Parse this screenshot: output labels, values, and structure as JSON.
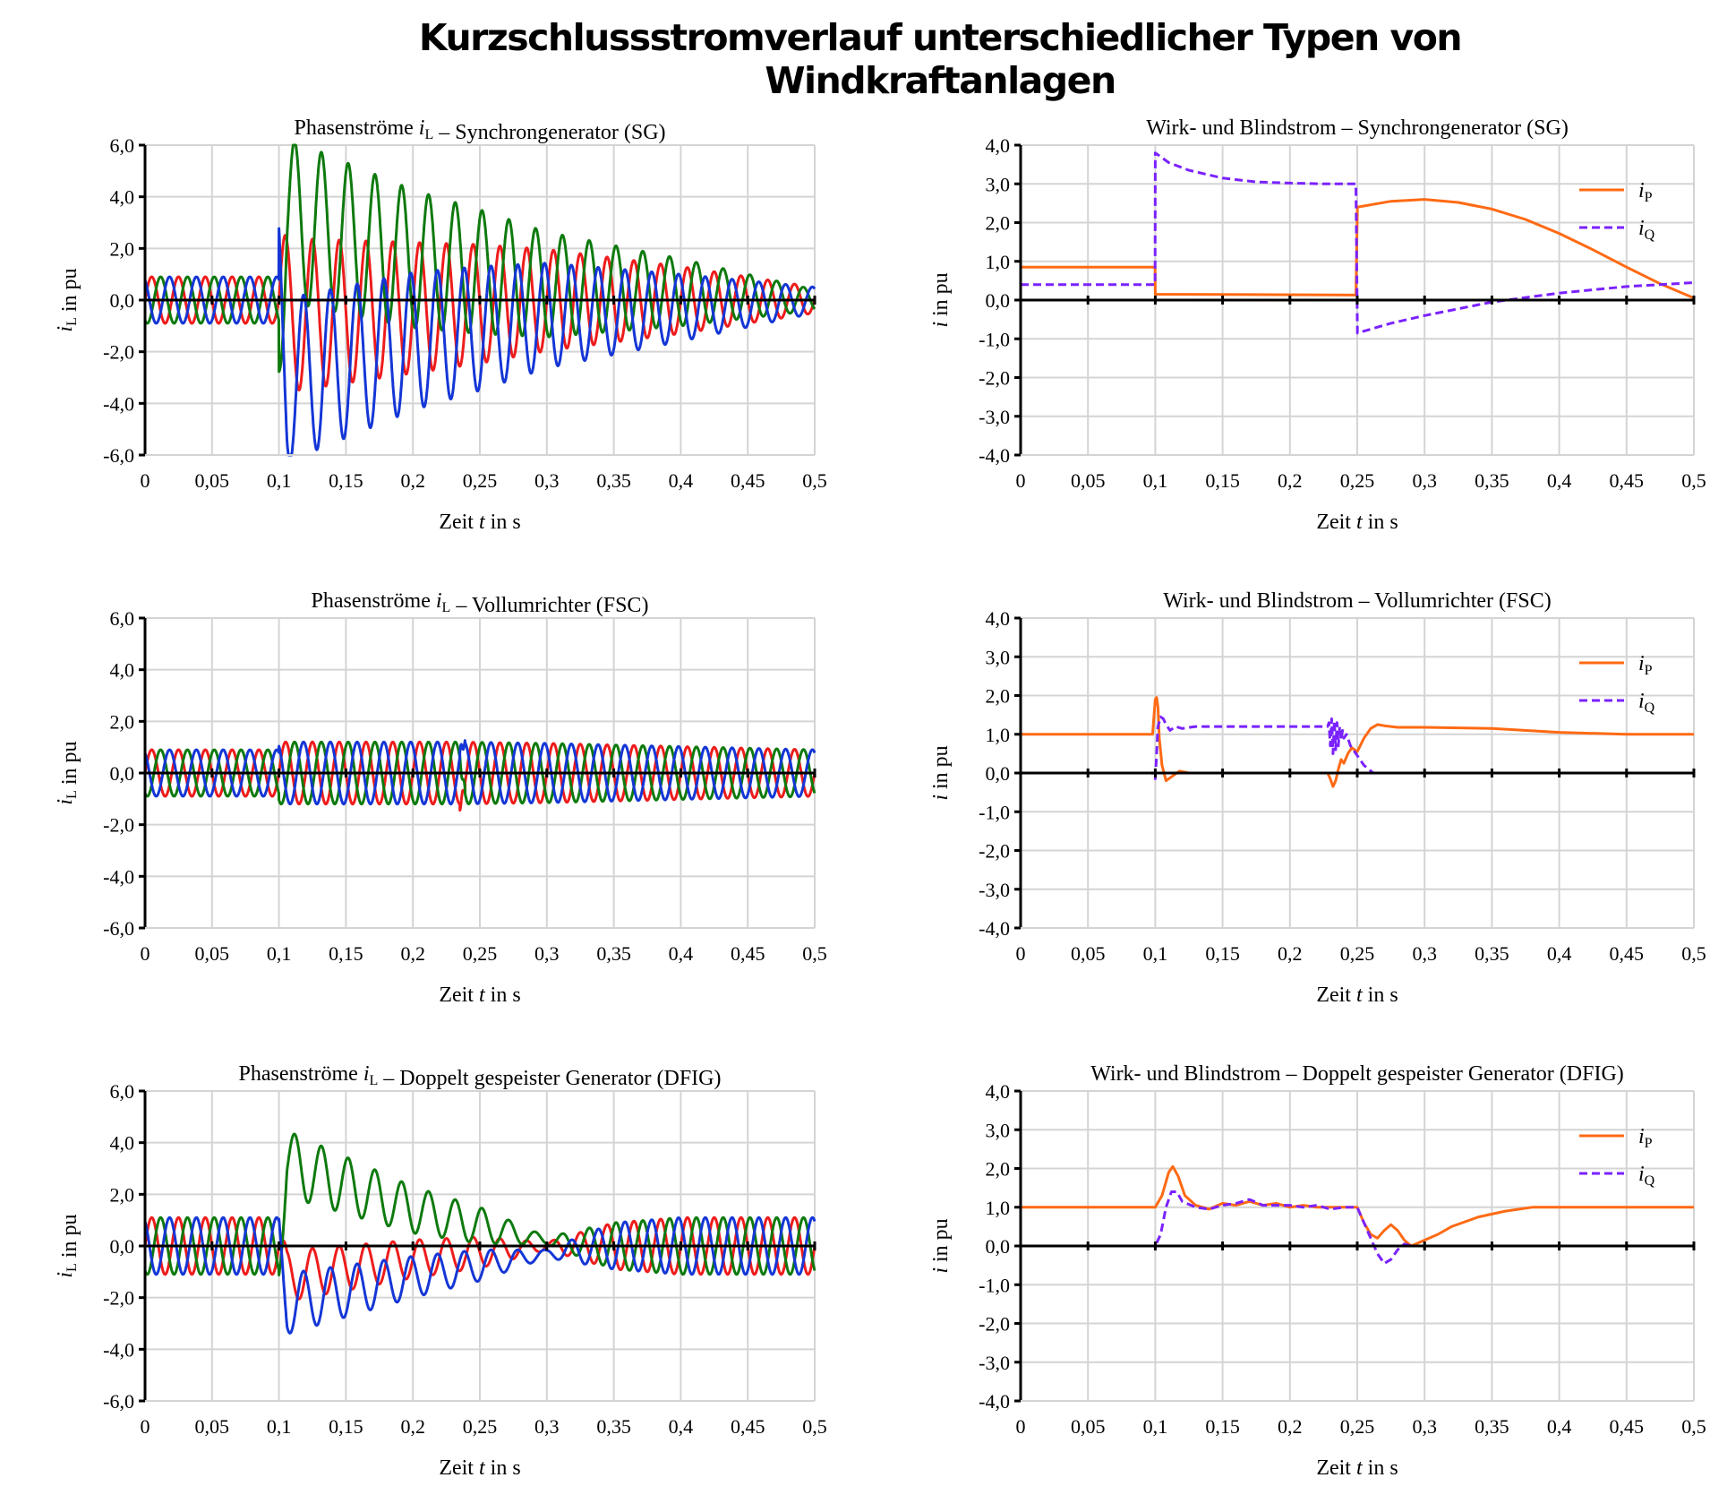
{
  "page_title": "Kurzschlussstromverlauf unterschiedlicher Typen von Windkraftanlagen",
  "colors": {
    "phase_red": "#ee1c1c",
    "phase_green": "#0e7a0e",
    "phase_blue": "#1436d6",
    "iP": "#ff6a14",
    "iQ": "#7a22ff"
  },
  "chart_data": [
    {
      "type": "line",
      "id": "sg_phase",
      "title": "Phasenströme iL – Synchrongenerator (SG)",
      "xlabel": "Zeit t in s",
      "ylabel": "iL in pu",
      "xlim": [
        0,
        0.5
      ],
      "ylim": [
        -6,
        6
      ],
      "xticks": [
        "0",
        "0,05",
        "0,1",
        "0,15",
        "0,2",
        "0,25",
        "0,3",
        "0,35",
        "0,4",
        "0,45",
        "0,5"
      ],
      "yticks": [
        "6,0",
        "4,0",
        "2,0",
        "0,0",
        "-2,0",
        "-4,0",
        "-6,0"
      ],
      "grid": true,
      "legend": "none",
      "series": [
        {
          "color": "#ee1c1c",
          "phase_deg": 0,
          "pre_amplitude": 0.9,
          "fault_start": 0.1,
          "fault_end": 0.5,
          "ac_amplitude": [
            [
              0.1,
              3.0
            ],
            [
              0.25,
              2.3
            ],
            [
              0.4,
              1.3
            ],
            [
              0.5,
              0.5
            ]
          ],
          "dc_offset": [
            [
              0.1,
              -0.6
            ],
            [
              0.2,
              -0.3
            ],
            [
              0.3,
              0
            ],
            [
              0.5,
              0
            ]
          ]
        },
        {
          "color": "#0e7a0e",
          "phase_deg": -120,
          "pre_amplitude": 0.9,
          "fault_start": 0.1,
          "fault_end": 0.5,
          "ac_amplitude": [
            [
              0.1,
              3.2
            ],
            [
              0.25,
              2.4
            ],
            [
              0.4,
              1.3
            ],
            [
              0.5,
              0.4
            ]
          ],
          "dc_offset": [
            [
              0.1,
              3.2
            ],
            [
              0.2,
              1.6
            ],
            [
              0.3,
              0.6
            ],
            [
              0.5,
              0
            ]
          ]
        },
        {
          "color": "#1436d6",
          "phase_deg": 120,
          "pre_amplitude": 0.9,
          "fault_start": 0.1,
          "fault_end": 0.5,
          "ac_amplitude": [
            [
              0.1,
              3.2
            ],
            [
              0.25,
              2.4
            ],
            [
              0.4,
              1.3
            ],
            [
              0.5,
              0.5
            ]
          ],
          "dc_offset": [
            [
              0.1,
              -3.2
            ],
            [
              0.2,
              -1.6
            ],
            [
              0.3,
              -0.6
            ],
            [
              0.5,
              0
            ]
          ]
        }
      ]
    },
    {
      "type": "line",
      "id": "sg_pq",
      "title": "Wirk- und Blindstrom – Synchrongenerator (SG)",
      "xlabel": "Zeit t in s",
      "ylabel": "i in pu",
      "xlim": [
        0,
        0.5
      ],
      "ylim": [
        -4,
        4
      ],
      "xticks": [
        "0",
        "0,05",
        "0,1",
        "0,15",
        "0,2",
        "0,25",
        "0,3",
        "0,35",
        "0,4",
        "0,45",
        "0,5"
      ],
      "yticks": [
        "4,0",
        "3,0",
        "2,0",
        "1,0",
        "0,0",
        "-1,0",
        "-2,0",
        "-3,0",
        "-4,0"
      ],
      "grid": true,
      "legend": "top-right",
      "legend_labels": [
        {
          "base": "i",
          "sub": "P"
        },
        {
          "base": "i",
          "sub": "Q"
        }
      ],
      "series": [
        {
          "name": "iP",
          "color": "#ff6a14",
          "dash": false,
          "x": [
            0,
            0.0999,
            0.1,
            0.249,
            0.2501,
            0.275,
            0.3,
            0.325,
            0.35,
            0.375,
            0.4,
            0.425,
            0.45,
            0.475,
            0.5
          ],
          "y": [
            0.85,
            0.85,
            0.15,
            0.13,
            2.4,
            2.55,
            2.6,
            2.52,
            2.35,
            2.08,
            1.72,
            1.3,
            0.85,
            0.42,
            0.05
          ]
        },
        {
          "name": "iQ",
          "color": "#7a22ff",
          "dash": true,
          "x": [
            0,
            0.0999,
            0.1,
            0.11,
            0.125,
            0.15,
            0.175,
            0.2,
            0.225,
            0.249,
            0.2501,
            0.275,
            0.3,
            0.35,
            0.4,
            0.45,
            0.5
          ],
          "y": [
            0.4,
            0.4,
            3.8,
            3.55,
            3.35,
            3.15,
            3.05,
            3.02,
            3.0,
            3.0,
            -0.85,
            -0.6,
            -0.4,
            -0.05,
            0.18,
            0.35,
            0.45
          ]
        }
      ]
    },
    {
      "type": "line",
      "id": "fsc_phase",
      "title": "Phasenströme iL – Vollumrichter (FSC)",
      "xlabel": "Zeit t in s",
      "ylabel": "iL in pu",
      "xlim": [
        0,
        0.5
      ],
      "ylim": [
        -6,
        6
      ],
      "xticks": [
        "0",
        "0,05",
        "0,1",
        "0,15",
        "0,2",
        "0,25",
        "0,3",
        "0,35",
        "0,4",
        "0,45",
        "0,5"
      ],
      "yticks": [
        "6,0",
        "4,0",
        "2,0",
        "0,0",
        "-2,0",
        "-4,0",
        "-6,0"
      ],
      "grid": true,
      "legend": "none",
      "series": [
        {
          "color": "#ee1c1c",
          "phase_deg": 0,
          "pre_amplitude": 0.9,
          "fault_start": 0.1,
          "fault_end": 0.235,
          "ac_amplitude": [
            [
              0.1,
              1.2
            ],
            [
              0.235,
              1.2
            ],
            [
              0.3,
              1.15
            ],
            [
              0.5,
              0.9
            ]
          ],
          "dc_offset": [
            [
              0,
              0
            ]
          ]
        },
        {
          "color": "#0e7a0e",
          "phase_deg": -120,
          "pre_amplitude": 0.9,
          "fault_start": 0.1,
          "fault_end": 0.235,
          "ac_amplitude": [
            [
              0.1,
              1.2
            ],
            [
              0.235,
              1.2
            ],
            [
              0.3,
              1.15
            ],
            [
              0.5,
              0.9
            ]
          ],
          "dc_offset": [
            [
              0,
              0
            ]
          ]
        },
        {
          "color": "#1436d6",
          "phase_deg": 120,
          "pre_amplitude": 0.9,
          "fault_start": 0.1,
          "fault_end": 0.235,
          "ac_amplitude": [
            [
              0.1,
              1.2
            ],
            [
              0.235,
              1.2
            ],
            [
              0.3,
              1.15
            ],
            [
              0.5,
              0.9
            ]
          ],
          "dc_offset": [
            [
              0,
              0
            ]
          ]
        }
      ]
    },
    {
      "type": "line",
      "id": "fsc_pq",
      "title": "Wirk- und Blindstrom – Vollumrichter (FSC)",
      "xlabel": "Zeit t in s",
      "ylabel": "i in pu",
      "xlim": [
        0,
        0.5
      ],
      "ylim": [
        -4,
        4
      ],
      "xticks": [
        "0",
        "0,05",
        "0,1",
        "0,15",
        "0,2",
        "0,25",
        "0,3",
        "0,35",
        "0,4",
        "0,45",
        "0,5"
      ],
      "yticks": [
        "4,0",
        "3,0",
        "2,0",
        "1,0",
        "0,0",
        "-1,0",
        "-2,0",
        "-3,0",
        "-4,0"
      ],
      "grid": true,
      "legend": "top-right",
      "legend_labels": [
        {
          "base": "i",
          "sub": "P"
        },
        {
          "base": "i",
          "sub": "Q"
        }
      ],
      "series": [
        {
          "name": "iP",
          "color": "#ff6a14",
          "dash": false,
          "x": [
            0,
            0.098,
            0.1,
            0.101,
            0.102,
            0.103,
            0.105,
            0.108,
            0.112,
            0.118,
            0.125,
            0.135,
            0.15,
            0.2,
            0.228,
            0.23,
            0.232,
            0.234,
            0.236,
            0.238,
            0.24,
            0.243,
            0.246,
            0.25,
            0.255,
            0.26,
            0.265,
            0.27,
            0.28,
            0.3,
            0.35,
            0.4,
            0.45,
            0.5
          ],
          "y": [
            1.0,
            1.0,
            1.9,
            1.95,
            1.7,
            0.9,
            0.2,
            -0.2,
            -0.1,
            0.05,
            0.0,
            0.0,
            0.0,
            0.0,
            0.0,
            -0.15,
            -0.35,
            -0.2,
            0.1,
            0.35,
            0.25,
            0.5,
            0.65,
            0.55,
            0.9,
            1.15,
            1.25,
            1.22,
            1.18,
            1.18,
            1.15,
            1.05,
            1.0,
            1.0
          ]
        },
        {
          "name": "iQ",
          "color": "#7a22ff",
          "dash": true,
          "x": [
            0,
            0.098,
            0.1,
            0.101,
            0.102,
            0.104,
            0.106,
            0.108,
            0.111,
            0.115,
            0.12,
            0.13,
            0.2,
            0.228,
            0.229,
            0.23,
            0.231,
            0.232,
            0.233,
            0.234,
            0.235,
            0.236,
            0.237,
            0.238,
            0.239,
            0.24,
            0.242,
            0.245,
            0.25,
            0.255,
            0.262,
            0.275,
            0.3,
            0.5
          ],
          "y": [
            0.0,
            0.0,
            -0.15,
            0.5,
            1.2,
            1.45,
            1.4,
            1.25,
            1.1,
            1.2,
            1.15,
            1.2,
            1.2,
            1.2,
            1.3,
            0.7,
            1.4,
            0.5,
            1.35,
            0.6,
            1.3,
            0.7,
            1.2,
            0.85,
            1.1,
            0.9,
            1.0,
            0.7,
            0.45,
            0.2,
            0.0,
            0.0,
            0.0,
            0.0
          ]
        }
      ]
    },
    {
      "type": "line",
      "id": "dfig_phase",
      "title": "Phasenströme iL – Doppelt gespeister Generator (DFIG)",
      "xlabel": "Zeit t in s",
      "ylabel": "iL in pu",
      "xlim": [
        0,
        0.5
      ],
      "ylim": [
        -6,
        6
      ],
      "xticks": [
        "0",
        "0,05",
        "0,1",
        "0,15",
        "0,2",
        "0,25",
        "0,3",
        "0,35",
        "0,4",
        "0,45",
        "0,5"
      ],
      "yticks": [
        "6,0",
        "4,0",
        "2,0",
        "0,0",
        "-2,0",
        "-4,0",
        "-6,0"
      ],
      "grid": true,
      "legend": "none",
      "series": [
        {
          "color": "#ee1c1c",
          "phase_deg": 0,
          "pre_amplitude": 1.1,
          "fault_start": 0.1,
          "fault_end": 0.5,
          "ac_amplitude": [
            [
              0.1,
              1.0
            ],
            [
              0.25,
              0.6
            ],
            [
              0.3,
              0.15
            ],
            [
              0.35,
              0.9
            ],
            [
              0.4,
              1.1
            ],
            [
              0.5,
              1.1
            ]
          ],
          "dc_offset": [
            [
              0.1,
              -1.2
            ],
            [
              0.2,
              -0.5
            ],
            [
              0.3,
              0
            ],
            [
              0.5,
              0
            ]
          ]
        },
        {
          "color": "#0e7a0e",
          "phase_deg": -120,
          "pre_amplitude": 1.1,
          "fault_start": 0.1,
          "fault_end": 0.5,
          "ac_amplitude": [
            [
              0.1,
              1.3
            ],
            [
              0.25,
              0.7
            ],
            [
              0.3,
              0.15
            ],
            [
              0.35,
              0.9
            ],
            [
              0.4,
              1.1
            ],
            [
              0.5,
              1.1
            ]
          ],
          "dc_offset": [
            [
              0.1,
              3.3
            ],
            [
              0.2,
              1.4
            ],
            [
              0.3,
              0.2
            ],
            [
              0.35,
              0
            ],
            [
              0.5,
              0
            ]
          ]
        },
        {
          "color": "#1436d6",
          "phase_deg": 120,
          "pre_amplitude": 1.1,
          "fault_start": 0.1,
          "fault_end": 0.5,
          "ac_amplitude": [
            [
              0.1,
              1.2
            ],
            [
              0.25,
              0.6
            ],
            [
              0.3,
              0.15
            ],
            [
              0.35,
              0.9
            ],
            [
              0.4,
              1.1
            ],
            [
              0.5,
              1.1
            ]
          ],
          "dc_offset": [
            [
              0.1,
              -2.3
            ],
            [
              0.2,
              -1.2
            ],
            [
              0.3,
              -0.3
            ],
            [
              0.35,
              0
            ],
            [
              0.5,
              0
            ]
          ]
        }
      ]
    },
    {
      "type": "line",
      "id": "dfig_pq",
      "title": "Wirk- und Blindstrom – Doppelt gespeister Generator (DFIG)",
      "xlabel": "Zeit t in s",
      "ylabel": "i in pu",
      "xlim": [
        0,
        0.5
      ],
      "ylim": [
        -4,
        4
      ],
      "xticks": [
        "0",
        "0,05",
        "0,1",
        "0,15",
        "0,2",
        "0,25",
        "0,3",
        "0,35",
        "0,4",
        "0,45",
        "0,5"
      ],
      "yticks": [
        "4,0",
        "3,0",
        "2,0",
        "1,0",
        "0,0",
        "-1,0",
        "-2,0",
        "-3,0",
        "-4,0"
      ],
      "grid": true,
      "legend": "top-right",
      "legend_labels": [
        {
          "base": "i",
          "sub": "P"
        },
        {
          "base": "i",
          "sub": "Q"
        }
      ],
      "series": [
        {
          "name": "iP",
          "color": "#ff6a14",
          "dash": false,
          "x": [
            0,
            0.1,
            0.105,
            0.11,
            0.113,
            0.117,
            0.122,
            0.13,
            0.14,
            0.15,
            0.16,
            0.17,
            0.18,
            0.19,
            0.2,
            0.21,
            0.22,
            0.23,
            0.24,
            0.25,
            0.255,
            0.26,
            0.265,
            0.27,
            0.275,
            0.28,
            0.285,
            0.29,
            0.3,
            0.31,
            0.32,
            0.34,
            0.36,
            0.38,
            0.4,
            0.45,
            0.5
          ],
          "y": [
            1.0,
            1.0,
            1.3,
            1.9,
            2.05,
            1.8,
            1.3,
            1.05,
            0.95,
            1.1,
            1.05,
            1.15,
            1.05,
            1.1,
            1.0,
            1.05,
            1.0,
            1.0,
            1.0,
            1.0,
            0.6,
            0.3,
            0.2,
            0.4,
            0.55,
            0.4,
            0.15,
            0.0,
            0.15,
            0.3,
            0.5,
            0.75,
            0.9,
            1.0,
            1.0,
            1.0,
            1.0
          ]
        },
        {
          "name": "iQ",
          "color": "#7a22ff",
          "dash": true,
          "x": [
            0,
            0.1,
            0.104,
            0.108,
            0.112,
            0.116,
            0.12,
            0.13,
            0.14,
            0.15,
            0.16,
            0.17,
            0.18,
            0.19,
            0.2,
            0.21,
            0.22,
            0.23,
            0.24,
            0.25,
            0.255,
            0.26,
            0.265,
            0.27,
            0.275,
            0.28,
            0.285,
            0.29,
            0.3,
            0.5
          ],
          "y": [
            0.0,
            0.0,
            0.3,
            1.0,
            1.4,
            1.4,
            1.15,
            1.0,
            0.95,
            1.05,
            1.1,
            1.2,
            1.05,
            1.05,
            1.05,
            1.0,
            1.05,
            0.95,
            1.0,
            1.0,
            0.6,
            0.2,
            -0.2,
            -0.45,
            -0.35,
            -0.1,
            0.05,
            0.0,
            0.0,
            0.0
          ]
        }
      ]
    }
  ]
}
